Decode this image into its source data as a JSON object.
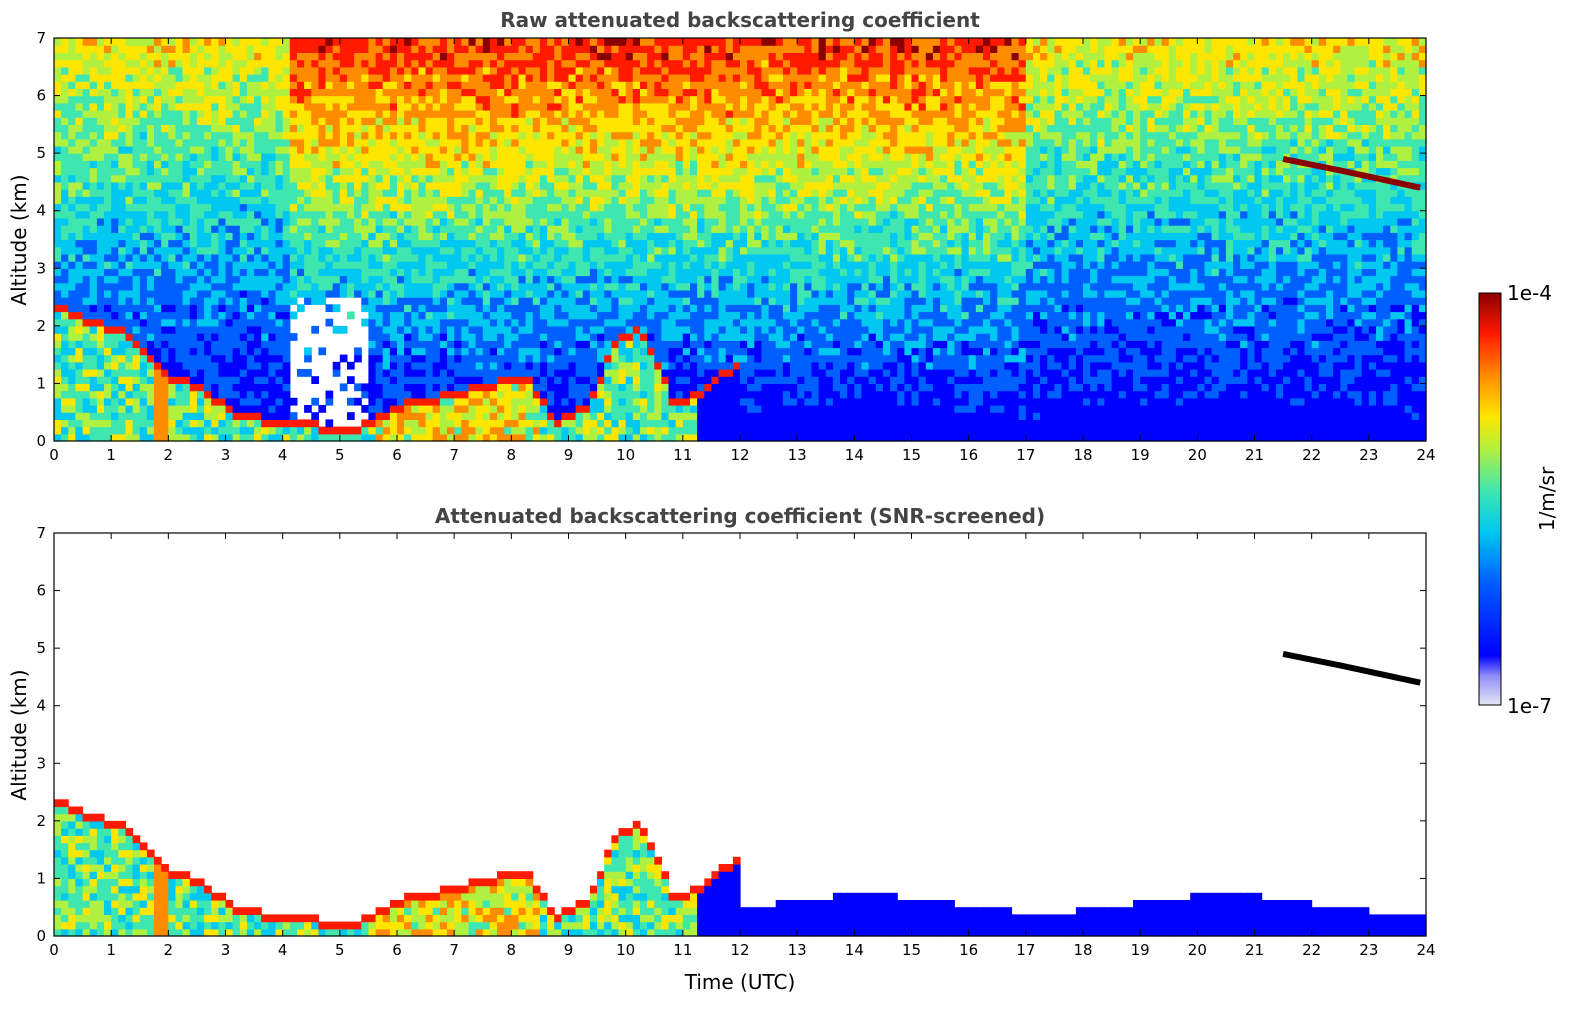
{
  "chart_data": [
    {
      "type": "heatmap",
      "title": "Raw attenuated backscattering coefficient",
      "xlabel": "",
      "ylabel": "Altitude (km)",
      "xlim": [
        0,
        24
      ],
      "ylim": [
        0,
        7
      ],
      "xticks": [
        "0",
        "1",
        "2",
        "3",
        "4",
        "5",
        "6",
        "7",
        "8",
        "9",
        "10",
        "11",
        "12",
        "13",
        "14",
        "15",
        "16",
        "17",
        "18",
        "19",
        "20",
        "21",
        "22",
        "23",
        "24"
      ],
      "yticks": [
        "0",
        "1",
        "2",
        "3",
        "4",
        "5",
        "6",
        "7"
      ],
      "features": [
        {
          "type": "boundary_layer_top",
          "x": [
            0,
            0.5,
            1.3,
            2.0,
            2.5,
            3.1,
            4.0,
            5.2,
            6.0,
            7.0,
            8.2,
            8.7,
            9.3,
            9.8,
            10.2,
            10.8,
            11.2,
            12.0
          ],
          "y": [
            2.2,
            2.0,
            1.7,
            1.0,
            0.8,
            0.35,
            0.15,
            0.1,
            0.5,
            0.7,
            1.0,
            0.2,
            0.5,
            1.7,
            1.8,
            0.5,
            0.7,
            1.3
          ]
        },
        {
          "type": "cloud_layer",
          "x": [
            21.5,
            22.5,
            23.9
          ],
          "y": [
            4.9,
            4.7,
            4.4
          ]
        }
      ],
      "grid": false
    },
    {
      "type": "heatmap",
      "title": "Attenuated backscattering coefficient (SNR-screened)",
      "xlabel": "Time (UTC)",
      "ylabel": "Altitude (km)",
      "xlim": [
        0,
        24
      ],
      "ylim": [
        0,
        7
      ],
      "xticks": [
        "0",
        "1",
        "2",
        "3",
        "4",
        "5",
        "6",
        "7",
        "8",
        "9",
        "10",
        "11",
        "12",
        "13",
        "14",
        "15",
        "16",
        "17",
        "18",
        "19",
        "20",
        "21",
        "22",
        "23",
        "24"
      ],
      "yticks": [
        "0",
        "1",
        "2",
        "3",
        "4",
        "5",
        "6",
        "7"
      ],
      "grid": false
    }
  ],
  "colorbar": {
    "label": "1/m/sr",
    "max_label": "1e-4",
    "min_label": "1e-7",
    "scale": "log",
    "range": [
      1e-07,
      0.0001
    ],
    "colormap": [
      "#e6e6f5",
      "#0000ff",
      "#00bfff",
      "#40e0c0",
      "#a0f060",
      "#ffe600",
      "#ff8c00",
      "#ff1a00",
      "#8b0000"
    ]
  }
}
